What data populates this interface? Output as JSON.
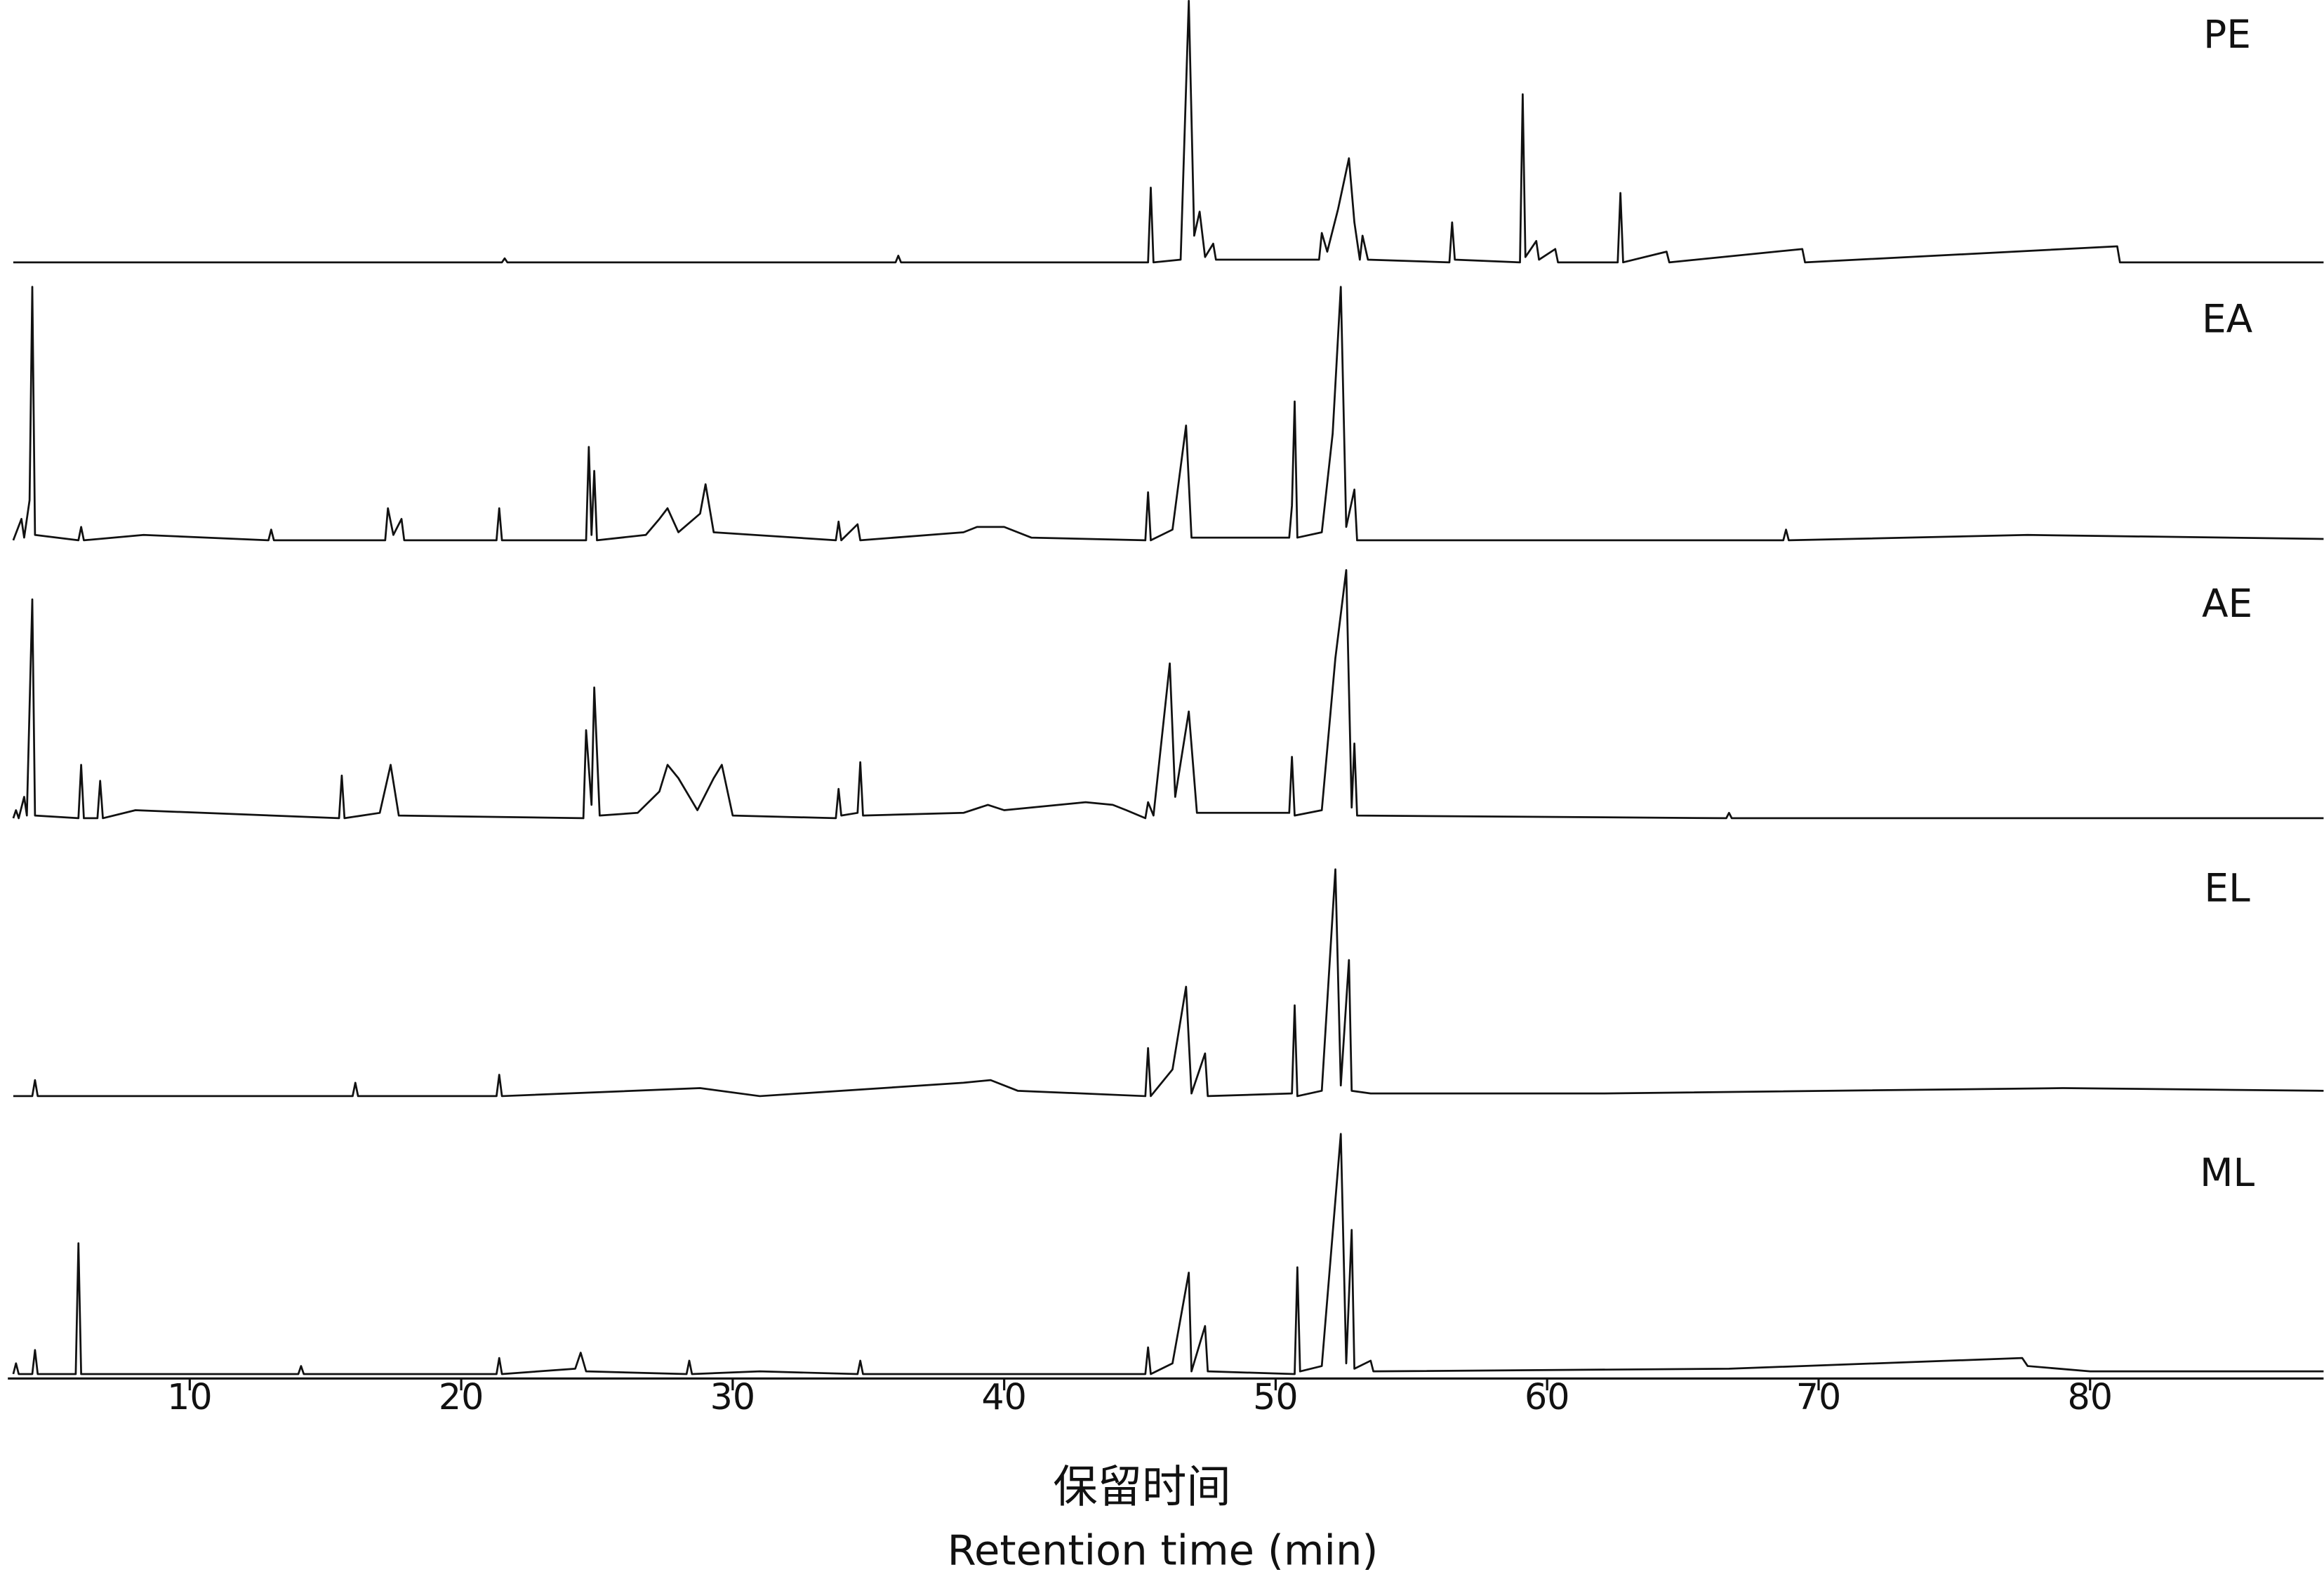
{
  "chart_data": {
    "type": "line",
    "xlabel": [
      "保留时间",
      "Retention time (min)"
    ],
    "xlim": [
      3.3,
      88.6
    ],
    "xticks": [
      10,
      20,
      30,
      40,
      50,
      60,
      70,
      80
    ],
    "ylim": [
      0,
      100
    ],
    "series": [
      {
        "name": "PE",
        "color": "#111111",
        "x": [
          3.5,
          21.5,
          21.6,
          21.7,
          36,
          36.1,
          36.2,
          45.3,
          45.4,
          45.5,
          46.5,
          46.8,
          47.0,
          47.2,
          47.4,
          47.7,
          47.8,
          51.6,
          51.7,
          51.9,
          52.3,
          52.7,
          52.9,
          53.1,
          53.2,
          53.4,
          56.4,
          56.5,
          56.6,
          59.0,
          59.1,
          59.2,
          59.6,
          59.7,
          60.3,
          60.4,
          62.6,
          62.7,
          62.8,
          64.4,
          64.5,
          69.4,
          69.5,
          81.0,
          81.1,
          88.6
        ],
        "values": [
          0,
          0,
          1.5,
          0,
          0,
          2.5,
          0,
          0,
          28,
          0,
          1,
          98,
          10,
          19,
          2,
          7,
          1,
          1,
          11,
          4,
          20,
          39,
          15,
          1,
          10,
          1,
          0,
          15,
          1,
          0,
          63,
          2,
          8,
          1,
          5,
          0,
          0,
          26,
          0,
          4,
          0,
          5,
          0,
          6,
          0,
          0
        ]
      },
      {
        "name": "EA",
        "color": "#111111",
        "x": [
          3.5,
          3.8,
          3.9,
          4.1,
          4.2,
          4.3,
          5.9,
          6.0,
          6.1,
          8.3,
          12.9,
          13.0,
          13.1,
          17.2,
          17.3,
          17.5,
          17.8,
          17.9,
          21.3,
          21.4,
          21.5,
          24.6,
          24.7,
          24.8,
          24.9,
          25.0,
          26.8,
          27.3,
          27.6,
          28.0,
          28.8,
          29.0,
          29.3,
          33.8,
          33.9,
          34.0,
          34.6,
          34.7,
          38.5,
          39,
          40,
          41,
          45.2,
          45.3,
          45.4,
          46.2,
          46.7,
          46.9,
          50.5,
          50.6,
          50.7,
          50.8,
          51.7,
          52.1,
          52.4,
          52.6,
          52.9,
          53.0,
          68.7,
          68.8,
          68.9,
          77.7,
          88.6
        ],
        "values": [
          0,
          8,
          1,
          15,
          95,
          2,
          0,
          5,
          0,
          2,
          0,
          4,
          0,
          0,
          12,
          2,
          8,
          0,
          0,
          12,
          0,
          0,
          35,
          2,
          26,
          0,
          2,
          8,
          12,
          3,
          10,
          21,
          3,
          0,
          7,
          0,
          6,
          0,
          3,
          5,
          5,
          1,
          0,
          18,
          0,
          4,
          43,
          1,
          1,
          13,
          52,
          1,
          3,
          40,
          95,
          5,
          19,
          0,
          0,
          4,
          0,
          2,
          0.5
        ]
      },
      {
        "name": "AE",
        "color": "#111111",
        "x": [
          3.5,
          3.6,
          3.7,
          3.9,
          4.0,
          4.2,
          4.3,
          5.9,
          6.0,
          6.1,
          6.6,
          6.7,
          6.8,
          8.0,
          15.5,
          15.6,
          15.7,
          17.0,
          17.4,
          17.7,
          24.5,
          24.6,
          24.8,
          24.9,
          25.1,
          26.5,
          27.3,
          27.6,
          28.0,
          28.7,
          29.3,
          29.6,
          30.0,
          33.8,
          33.9,
          34.0,
          34.6,
          34.7,
          34.8,
          38.5,
          39.4,
          40,
          43,
          44,
          44.5,
          45.2,
          45.3,
          45.5,
          46.1,
          46.3,
          46.8,
          47.1,
          50.5,
          50.6,
          50.7,
          51.7,
          52.2,
          52.6,
          52.8,
          52.9,
          53.0,
          66.6,
          66.7,
          66.8,
          88.6
        ],
        "values": [
          0,
          3,
          0,
          8,
          1,
          82,
          1,
          0,
          20,
          0,
          0,
          14,
          0,
          3,
          0,
          16,
          0,
          2,
          20,
          1,
          0,
          33,
          5,
          49,
          1,
          2,
          10,
          20,
          15,
          3,
          15,
          20,
          1,
          0,
          11,
          1,
          2,
          21,
          1,
          2,
          5,
          3,
          6,
          5,
          3,
          0,
          6,
          1,
          58,
          8,
          40,
          2,
          2,
          23,
          1,
          3,
          60,
          93,
          4,
          28,
          1,
          0,
          2,
          0,
          0
        ]
      },
      {
        "name": "EL",
        "color": "#111111",
        "x": [
          3.5,
          4.2,
          4.3,
          4.4,
          16,
          16.1,
          16.2,
          21.3,
          21.4,
          21.5,
          28.8,
          31,
          38.5,
          39.5,
          40.5,
          45.2,
          45.3,
          45.4,
          46.2,
          46.7,
          46.9,
          47.4,
          47.5,
          50.6,
          50.7,
          50.8,
          51.7,
          52.2,
          52.4,
          52.7,
          52.8,
          53.5,
          62,
          79,
          88.6
        ],
        "values": [
          0,
          0,
          6,
          0,
          0,
          5,
          0,
          0,
          8,
          0,
          3,
          0,
          5,
          6,
          2,
          0,
          18,
          0,
          10,
          41,
          1,
          16,
          0,
          1,
          34,
          0,
          2,
          85,
          4,
          51,
          2,
          1,
          1,
          3,
          2
        ]
      },
      {
        "name": "ML",
        "color": "#111111",
        "x": [
          3.5,
          3.6,
          3.7,
          4.2,
          4.3,
          4.4,
          5.8,
          5.9,
          6.0,
          14,
          14.1,
          14.2,
          21.3,
          21.4,
          21.5,
          24.2,
          24.4,
          24.6,
          28.3,
          28.4,
          28.5,
          31,
          34.6,
          34.7,
          34.8,
          45.2,
          45.3,
          45.4,
          46.2,
          46.8,
          46.9,
          47.4,
          47.5,
          50.7,
          50.8,
          50.9,
          51.7,
          52.4,
          52.6,
          52.8,
          52.9,
          53.5,
          53.6,
          66.7,
          77.5,
          77.7,
          80,
          88.6
        ],
        "values": [
          0,
          4,
          0,
          0,
          9,
          0,
          0,
          49,
          0,
          0,
          3,
          0,
          0,
          6,
          0,
          2,
          8,
          1,
          0,
          5,
          0,
          1,
          0,
          5,
          0,
          0,
          10,
          0,
          4,
          38,
          1,
          18,
          1,
          0,
          40,
          1,
          3,
          90,
          4,
          54,
          2,
          5,
          1,
          2,
          6,
          3,
          1,
          1
        ]
      }
    ]
  }
}
